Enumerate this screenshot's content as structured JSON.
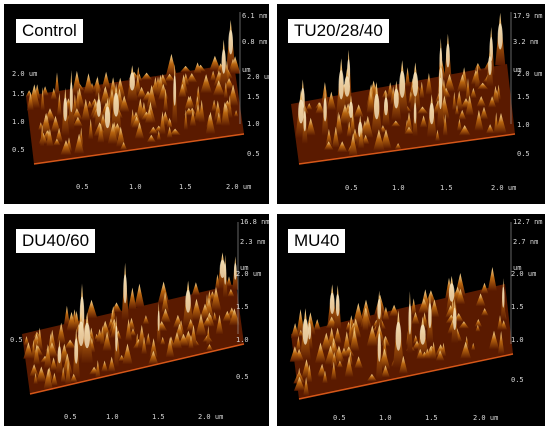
{
  "panels": [
    {
      "label": "Control",
      "z_max": "6.1 nm",
      "z_tick": "0.8 nm",
      "z_unit": "um",
      "xy_ticks_front": [
        "0.5",
        "1.0",
        "1.5",
        "2.0 um"
      ],
      "xy_ticks_left": [
        "2.0 um",
        "1.5",
        "1.0",
        "0.5"
      ],
      "xy_ticks_right": [
        "2.0 um",
        "1.5",
        "1.0",
        "0.5"
      ]
    },
    {
      "label": "TU20/28/40",
      "z_max": "17.9 nm",
      "z_tick": "3.2 nm",
      "z_unit": "um",
      "xy_ticks_front": [
        "0.5",
        "1.0",
        "1.5",
        "2.0 um"
      ],
      "xy_ticks_left": [],
      "xy_ticks_right": [
        "2.0 um",
        "1.5",
        "1.0",
        "0.5"
      ]
    },
    {
      "label": "DU40/60",
      "z_max": "16.8 nm",
      "z_tick": "2.3 nm",
      "z_unit": "um",
      "xy_ticks_front": [
        "0.5",
        "1.0",
        "1.5",
        "2.0 um"
      ],
      "xy_ticks_left": [
        "0.5"
      ],
      "xy_ticks_right": [
        "2.0 um",
        "1.5",
        "1.0",
        "0.5"
      ]
    },
    {
      "label": "MU40",
      "z_max": "12.7 nm",
      "z_tick": "2.7 nm",
      "z_unit": "um",
      "xy_ticks_front": [
        "0.5",
        "1.0",
        "1.5",
        "2.0 um"
      ],
      "xy_ticks_left": [],
      "xy_ticks_right": [
        "2.0 um",
        "1.5",
        "1.0",
        "0.5"
      ]
    }
  ],
  "colors": {
    "background": "#000000",
    "surface_dark": "#5a1a00",
    "surface_mid": "#b8650f",
    "surface_light": "#ffe3a0",
    "peak_highlight": "#fff6d8"
  }
}
